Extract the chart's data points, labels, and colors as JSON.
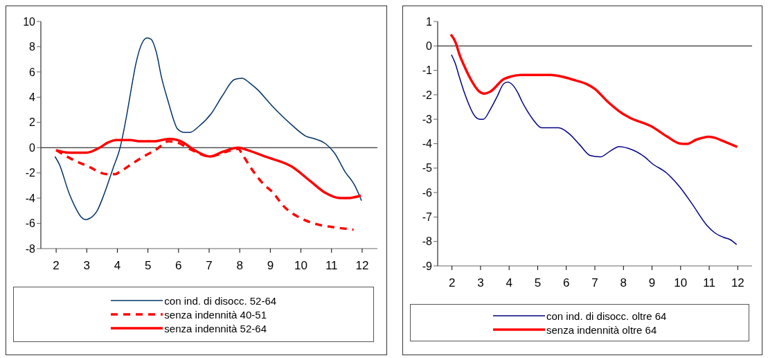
{
  "chart_data": [
    {
      "type": "line",
      "xlim": [
        1.5,
        12.5
      ],
      "xticks": [
        2,
        3,
        4,
        5,
        6,
        7,
        8,
        9,
        10,
        11,
        12
      ],
      "ylim": [
        -8,
        10
      ],
      "yticks": [
        -8,
        -6,
        -4,
        -2,
        0,
        2,
        4,
        6,
        8,
        10
      ],
      "grid": false,
      "ref_lines": [
        {
          "axis": "y",
          "value": 0,
          "color": "#000000"
        }
      ],
      "legend": "bottom",
      "marker": "none",
      "series": [
        {
          "name": "con ind. di disocc. 52-64",
          "color": "#003366",
          "line_style": "solid",
          "x": [
            1.96,
            2.1,
            2.42,
            2.62,
            2.82,
            2.98,
            3.1,
            3.34,
            3.58,
            3.85,
            4.09,
            4.33,
            4.45,
            4.61,
            4.81,
            4.97,
            5.1,
            5.28,
            5.44,
            5.68,
            5.84,
            5.96,
            6.2,
            6.36,
            6.67,
            7.07,
            7.43,
            7.83,
            8.07,
            8.34,
            8.58,
            9.06,
            9.7,
            10.17,
            10.45,
            10.81,
            11.09,
            11.44,
            11.76,
            11.98
          ],
          "values": [
            -0.7,
            -1.3,
            -3.6,
            -4.7,
            -5.5,
            -5.7,
            -5.6,
            -5.0,
            -3.6,
            -1.7,
            0,
            2.9,
            4.6,
            6.7,
            8.3,
            8.7,
            8.6,
            7.5,
            5.6,
            3.5,
            2.2,
            1.5,
            1.2,
            1.2,
            1.7,
            2.7,
            4.1,
            5.4,
            5.5,
            5.1,
            4.6,
            3.3,
            1.8,
            0.9,
            0.7,
            0.3,
            -0.4,
            -1.9,
            -3.0,
            -4.2
          ]
        },
        {
          "name": "senza indennità 40-51",
          "color": "#ff0000",
          "line_style": "dashed",
          "x": [
            2.0,
            2.5,
            3.06,
            3.65,
            3.93,
            4.09,
            4.53,
            4.93,
            5.24,
            5.68,
            5.96,
            6.36,
            7.03,
            7.59,
            7.95,
            8.1,
            8.42,
            8.78,
            9.06,
            9.46,
            10.0,
            10.57,
            11.05,
            11.72
          ],
          "values": [
            -0.2,
            -0.9,
            -1.5,
            -2.1,
            -2.1,
            -1.9,
            -1.2,
            -0.6,
            -0.2,
            0.5,
            0.4,
            -0.1,
            -0.7,
            -0.3,
            -0.1,
            -0.6,
            -1.8,
            -2.9,
            -3.5,
            -4.7,
            -5.6,
            -6.1,
            -6.3,
            -6.5
          ]
        },
        {
          "name": "senza indennità 52-64",
          "color": "#ff0000",
          "line_style": "solid",
          "x": [
            2.0,
            2.42,
            2.98,
            3.42,
            3.69,
            3.97,
            4.41,
            4.76,
            5.2,
            5.71,
            6.08,
            6.52,
            7.03,
            7.47,
            7.95,
            8.26,
            8.82,
            9.7,
            10.33,
            10.81,
            11.28,
            11.52,
            11.96
          ],
          "values": [
            -0.2,
            -0.4,
            -0.4,
            0,
            0.4,
            0.6,
            0.6,
            0.5,
            0.5,
            0.7,
            0.5,
            -0.2,
            -0.7,
            -0.3,
            0,
            -0.2,
            -0.7,
            -1.5,
            -2.7,
            -3.6,
            -4.0,
            -4.0,
            -3.8
          ]
        }
      ]
    },
    {
      "type": "line",
      "xlim": [
        1.5,
        12.5
      ],
      "xticks": [
        2,
        3,
        4,
        5,
        6,
        7,
        8,
        9,
        10,
        11,
        12
      ],
      "ylim": [
        -9,
        1
      ],
      "yticks": [
        -9,
        -8,
        -7,
        -6,
        -5,
        -4,
        -3,
        -2,
        -1,
        0,
        1
      ],
      "grid": false,
      "ref_lines": [
        {
          "axis": "y",
          "value": 0,
          "color": "#000000"
        }
      ],
      "legend": "bottom",
      "marker": "none",
      "series": [
        {
          "name": "con ind. di disocc. oltre 64",
          "color": "#000080",
          "line_style": "solid",
          "x": [
            1.98,
            2.12,
            2.24,
            2.43,
            2.82,
            2.98,
            3.1,
            3.34,
            3.57,
            3.81,
            3.95,
            4.08,
            4.32,
            4.44,
            4.63,
            4.83,
            5.14,
            5.73,
            6.08,
            6.48,
            6.83,
            7.19,
            7.54,
            7.85,
            8.17,
            8.75,
            8.99,
            9.5,
            9.97,
            10.4,
            10.92,
            11.19,
            11.5,
            11.74,
            11.96
          ],
          "values": [
            -0.36,
            -0.73,
            -1.2,
            -1.9,
            -2.9,
            -3.0,
            -3.0,
            -2.6,
            -2.1,
            -1.55,
            -1.48,
            -1.55,
            -1.95,
            -2.25,
            -2.65,
            -3.0,
            -3.35,
            -3.35,
            -3.57,
            -4.06,
            -4.48,
            -4.54,
            -4.3,
            -4.12,
            -4.19,
            -4.55,
            -4.8,
            -5.19,
            -5.77,
            -6.46,
            -7.34,
            -7.64,
            -7.83,
            -7.93,
            -8.13
          ]
        },
        {
          "name": "senza indennità oltre 64",
          "color": "#ff0000",
          "line_style": "solid",
          "x": [
            1.96,
            2.12,
            2.27,
            2.43,
            2.63,
            2.94,
            3.14,
            3.34,
            3.81,
            4.04,
            4.43,
            5.46,
            5.93,
            6.32,
            6.71,
            6.99,
            7.42,
            7.93,
            8.21,
            8.99,
            9.54,
            9.97,
            10.21,
            10.56,
            10.99,
            11.23,
            11.5,
            11.98
          ],
          "values": [
            0.47,
            0.16,
            -0.38,
            -0.82,
            -1.31,
            -1.85,
            -1.95,
            -1.87,
            -1.36,
            -1.26,
            -1.19,
            -1.19,
            -1.28,
            -1.41,
            -1.56,
            -1.75,
            -2.25,
            -2.74,
            -2.93,
            -3.3,
            -3.72,
            -3.99,
            -4.01,
            -3.83,
            -3.72,
            -3.77,
            -3.9,
            -4.13
          ]
        }
      ]
    }
  ]
}
